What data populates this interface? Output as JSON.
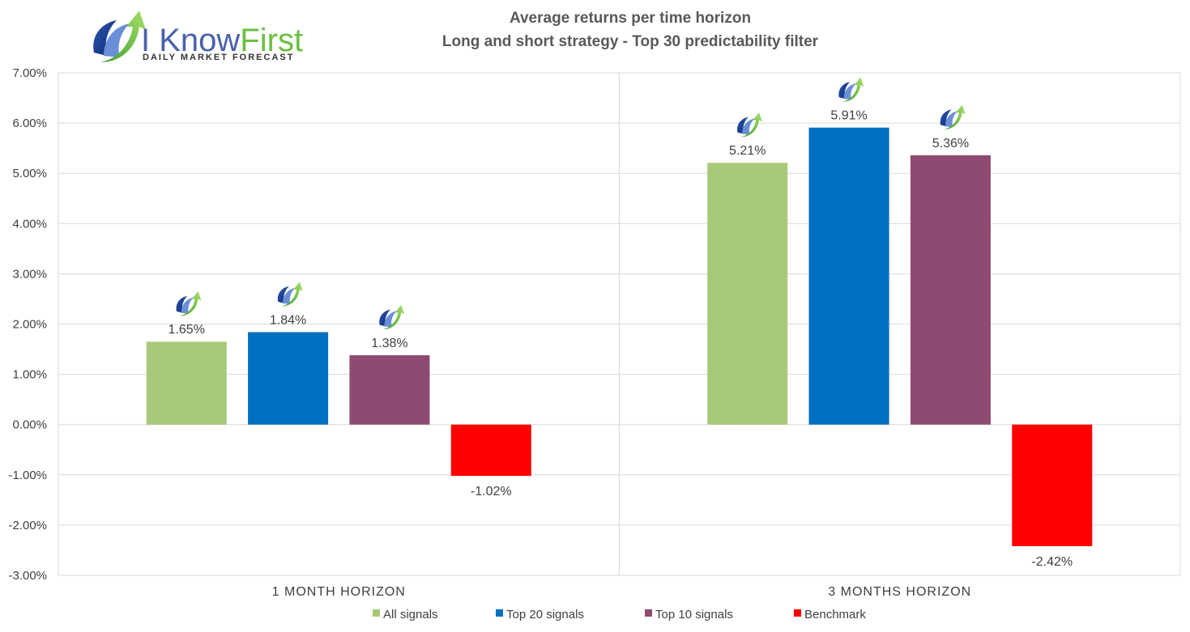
{
  "chart_data": {
    "type": "bar",
    "title": "Average returns per time horizon",
    "subtitle": "Long and short strategy - Top 30 predictability filter",
    "categories": [
      "1 MONTH HORIZON",
      "3 MONTHS HORIZON"
    ],
    "series": [
      {
        "name": "All signals",
        "color": "#a9c97a",
        "values": [
          1.65,
          5.21
        ],
        "labels": [
          "1.65%",
          "5.21%"
        ]
      },
      {
        "name": "Top 20 signals",
        "color": "#0070c0",
        "values": [
          1.84,
          5.91
        ],
        "labels": [
          "1.84%",
          "5.91%"
        ]
      },
      {
        "name": "Top 10 signals",
        "color": "#8e4b72",
        "values": [
          1.38,
          5.36
        ],
        "labels": [
          "1.38%",
          "5.36%"
        ]
      },
      {
        "name": "Benchmark",
        "color": "#ff0000",
        "values": [
          -1.02,
          -2.42
        ],
        "labels": [
          "-1.02%",
          "-2.42%"
        ]
      }
    ],
    "ylim": [
      -3,
      7
    ],
    "yticks": [
      "7.00%",
      "6.00%",
      "5.00%",
      "4.00%",
      "3.00%",
      "2.00%",
      "1.00%",
      "0.00%",
      "-1.00%",
      "-2.00%",
      "-3.00%"
    ],
    "ytick_values": [
      7,
      6,
      5,
      4,
      3,
      2,
      1,
      0,
      -1,
      -2,
      -3
    ],
    "grid": true,
    "legend_position": "bottom",
    "marker_icon": "i-know-first-arrow-icon"
  },
  "logo": {
    "text_main": "I Know",
    "text_accent": "First",
    "tagline": "Daily Market Forecast",
    "icon": "i-know-first-logo-icon"
  }
}
